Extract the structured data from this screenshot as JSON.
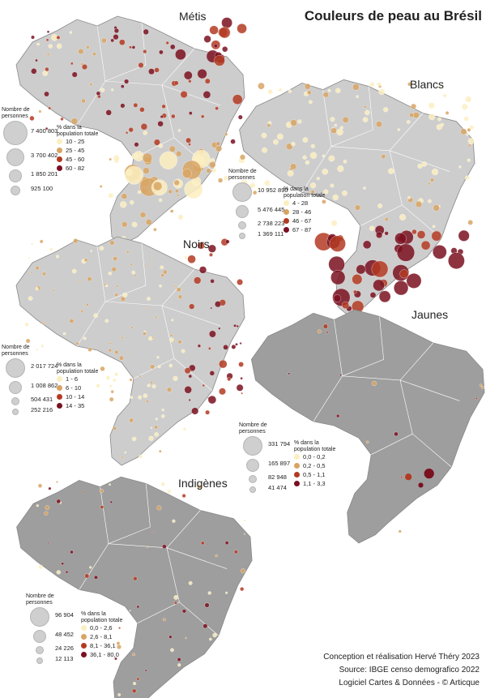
{
  "title": "Couleurs de peau au Brésil",
  "credits": {
    "line1": "Conception et réalisation Hervé Théry 2023",
    "line2": "Source: IBGE censo demografico 2022",
    "line3": "Logiciel  Cartes & Données - © Articque"
  },
  "legend_labels": {
    "size_header": "Nombre de personnes",
    "class_header": "% dans la population totale"
  },
  "panels": [
    {
      "id": "metis",
      "title": "Métis",
      "size_values": [
        "7 400 803",
        "3 700 402",
        "1 850 201",
        "925 100"
      ],
      "classes": [
        {
          "label": "10 - 25",
          "color": "#fbefc0"
        },
        {
          "label": "25 - 45",
          "color": "#d8a464"
        },
        {
          "label": "45 - 60",
          "color": "#b33a22"
        },
        {
          "label": "60 - 82",
          "color": "#7a1020"
        }
      ]
    },
    {
      "id": "blancs",
      "title": "Blancs",
      "size_values": [
        "10 952 890",
        "5 476 445",
        "2 738 223",
        "1 369 111"
      ],
      "classes": [
        {
          "label": "4 - 28",
          "color": "#fbefc0"
        },
        {
          "label": "28 - 46",
          "color": "#d8a464"
        },
        {
          "label": "46 - 67",
          "color": "#b33a22"
        },
        {
          "label": "67 - 87",
          "color": "#7a1020"
        }
      ]
    },
    {
      "id": "noirs",
      "title": "Noirs",
      "size_values": [
        "2 017 724",
        "1 008 862",
        "504 431",
        "252 216"
      ],
      "classes": [
        {
          "label": "1 - 6",
          "color": "#fbefc0"
        },
        {
          "label": "6 - 10",
          "color": "#d8a464"
        },
        {
          "label": "10 - 14",
          "color": "#b33a22"
        },
        {
          "label": "14 - 35",
          "color": "#7a1020"
        }
      ]
    },
    {
      "id": "jaunes",
      "title": "Jaunes",
      "size_values": [
        "331 794",
        "165 897",
        "82 948",
        "41 474"
      ],
      "classes": [
        {
          "label": "0,0 - 0,2",
          "color": "#fbefc0"
        },
        {
          "label": "0,2 - 0,5",
          "color": "#d8a464"
        },
        {
          "label": "0,5 - 1,1",
          "color": "#b33a22"
        },
        {
          "label": "1,1 - 3,3",
          "color": "#7a1020"
        }
      ]
    },
    {
      "id": "indigenes",
      "title": "Indigènes",
      "size_values": [
        "96 904",
        "48 452",
        "24 226",
        "12 113"
      ],
      "classes": [
        {
          "label": "0,0 - 2,6",
          "color": "#fbefc0"
        },
        {
          "label": "2,6 - 8,1",
          "color": "#d8a464"
        },
        {
          "label": "8,1 - 36,1",
          "color": "#b33a22"
        },
        {
          "label": "36,1 - 80,0",
          "color": "#7a1020"
        }
      ]
    }
  ]
}
